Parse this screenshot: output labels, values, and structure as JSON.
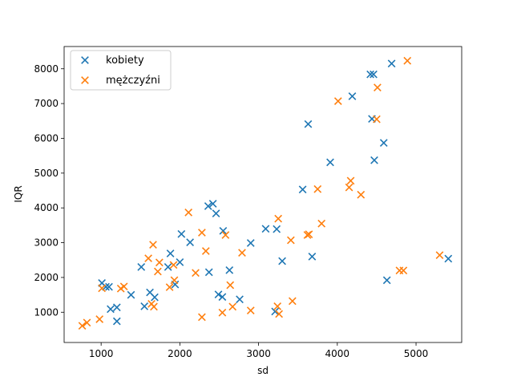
{
  "chart_data": {
    "type": "scatter",
    "title": "",
    "xlabel": "sd",
    "ylabel": "IQR",
    "xlim": [
      530,
      5580
    ],
    "ylim": [
      130,
      8640
    ],
    "xticks": [
      1000,
      2000,
      3000,
      4000,
      5000
    ],
    "yticks": [
      1000,
      2000,
      3000,
      4000,
      5000,
      6000,
      7000,
      8000
    ],
    "grid": false,
    "legend_position": "top-left",
    "marker": "x",
    "series": [
      {
        "name": "kobiety",
        "color": "#1f77b4",
        "points": [
          [
            1010,
            1840
          ],
          [
            1060,
            1730
          ],
          [
            1100,
            1730
          ],
          [
            1120,
            1090
          ],
          [
            1200,
            1140
          ],
          [
            1200,
            740
          ],
          [
            1380,
            1500
          ],
          [
            1510,
            2300
          ],
          [
            1550,
            1170
          ],
          [
            1620,
            1570
          ],
          [
            1680,
            1430
          ],
          [
            1850,
            2300
          ],
          [
            1880,
            2690
          ],
          [
            1940,
            1800
          ],
          [
            2000,
            2440
          ],
          [
            2020,
            3250
          ],
          [
            2130,
            3010
          ],
          [
            2360,
            4050
          ],
          [
            2370,
            2150
          ],
          [
            2420,
            4120
          ],
          [
            2460,
            3840
          ],
          [
            2490,
            1510
          ],
          [
            2540,
            1440
          ],
          [
            2550,
            3340
          ],
          [
            2630,
            2210
          ],
          [
            2760,
            1370
          ],
          [
            2900,
            2990
          ],
          [
            3090,
            3400
          ],
          [
            3230,
            3390
          ],
          [
            3210,
            1020
          ],
          [
            3300,
            2470
          ],
          [
            3560,
            4530
          ],
          [
            3630,
            6410
          ],
          [
            3680,
            2600
          ],
          [
            3910,
            5310
          ],
          [
            4190,
            7210
          ],
          [
            4420,
            7840
          ],
          [
            4460,
            7840
          ],
          [
            4440,
            6560
          ],
          [
            4470,
            5370
          ],
          [
            4590,
            5870
          ],
          [
            4630,
            1920
          ],
          [
            4690,
            8150
          ],
          [
            5410,
            2540
          ]
        ]
      },
      {
        "name": "mężczyźni",
        "color": "#ff7f0e",
        "points": [
          [
            760,
            610
          ],
          [
            820,
            700
          ],
          [
            980,
            800
          ],
          [
            1010,
            1690
          ],
          [
            1250,
            1680
          ],
          [
            1290,
            1740
          ],
          [
            1600,
            2550
          ],
          [
            1640,
            1240
          ],
          [
            1660,
            2940
          ],
          [
            1670,
            1160
          ],
          [
            1720,
            2170
          ],
          [
            1740,
            2430
          ],
          [
            1870,
            1720
          ],
          [
            1920,
            2360
          ],
          [
            1930,
            1920
          ],
          [
            2110,
            3870
          ],
          [
            2200,
            2130
          ],
          [
            2280,
            3290
          ],
          [
            2280,
            860
          ],
          [
            2330,
            2760
          ],
          [
            2540,
            990
          ],
          [
            2580,
            3220
          ],
          [
            2640,
            1780
          ],
          [
            2670,
            1160
          ],
          [
            2790,
            2710
          ],
          [
            2900,
            1050
          ],
          [
            3240,
            1170
          ],
          [
            3250,
            3690
          ],
          [
            3260,
            950
          ],
          [
            3410,
            3070
          ],
          [
            3430,
            1320
          ],
          [
            3620,
            3220
          ],
          [
            3640,
            3240
          ],
          [
            3750,
            4540
          ],
          [
            3800,
            3550
          ],
          [
            4010,
            7070
          ],
          [
            4150,
            4590
          ],
          [
            4170,
            4780
          ],
          [
            4300,
            4380
          ],
          [
            4500,
            6550
          ],
          [
            4510,
            7460
          ],
          [
            4790,
            2200
          ],
          [
            4840,
            2200
          ],
          [
            4890,
            8230
          ],
          [
            5300,
            2640
          ]
        ]
      }
    ]
  }
}
